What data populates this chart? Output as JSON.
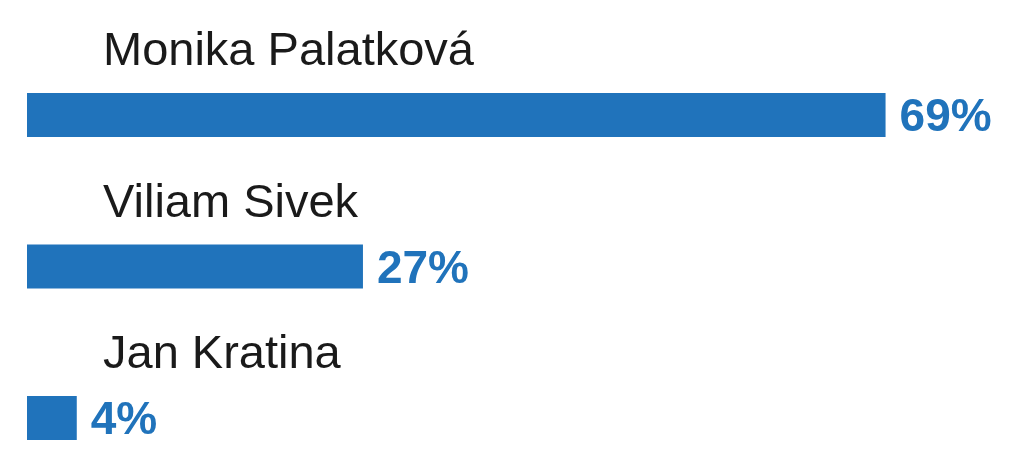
{
  "chart_data": {
    "type": "bar",
    "orientation": "horizontal",
    "categories": [
      "Monika Palatková",
      "Viliam Sivek",
      "Jan Kratina"
    ],
    "values": [
      69,
      27,
      4
    ],
    "color": "#2073bb",
    "value_labels": [
      "69%",
      "27%",
      "4%"
    ],
    "tick_labels": "y"
  }
}
